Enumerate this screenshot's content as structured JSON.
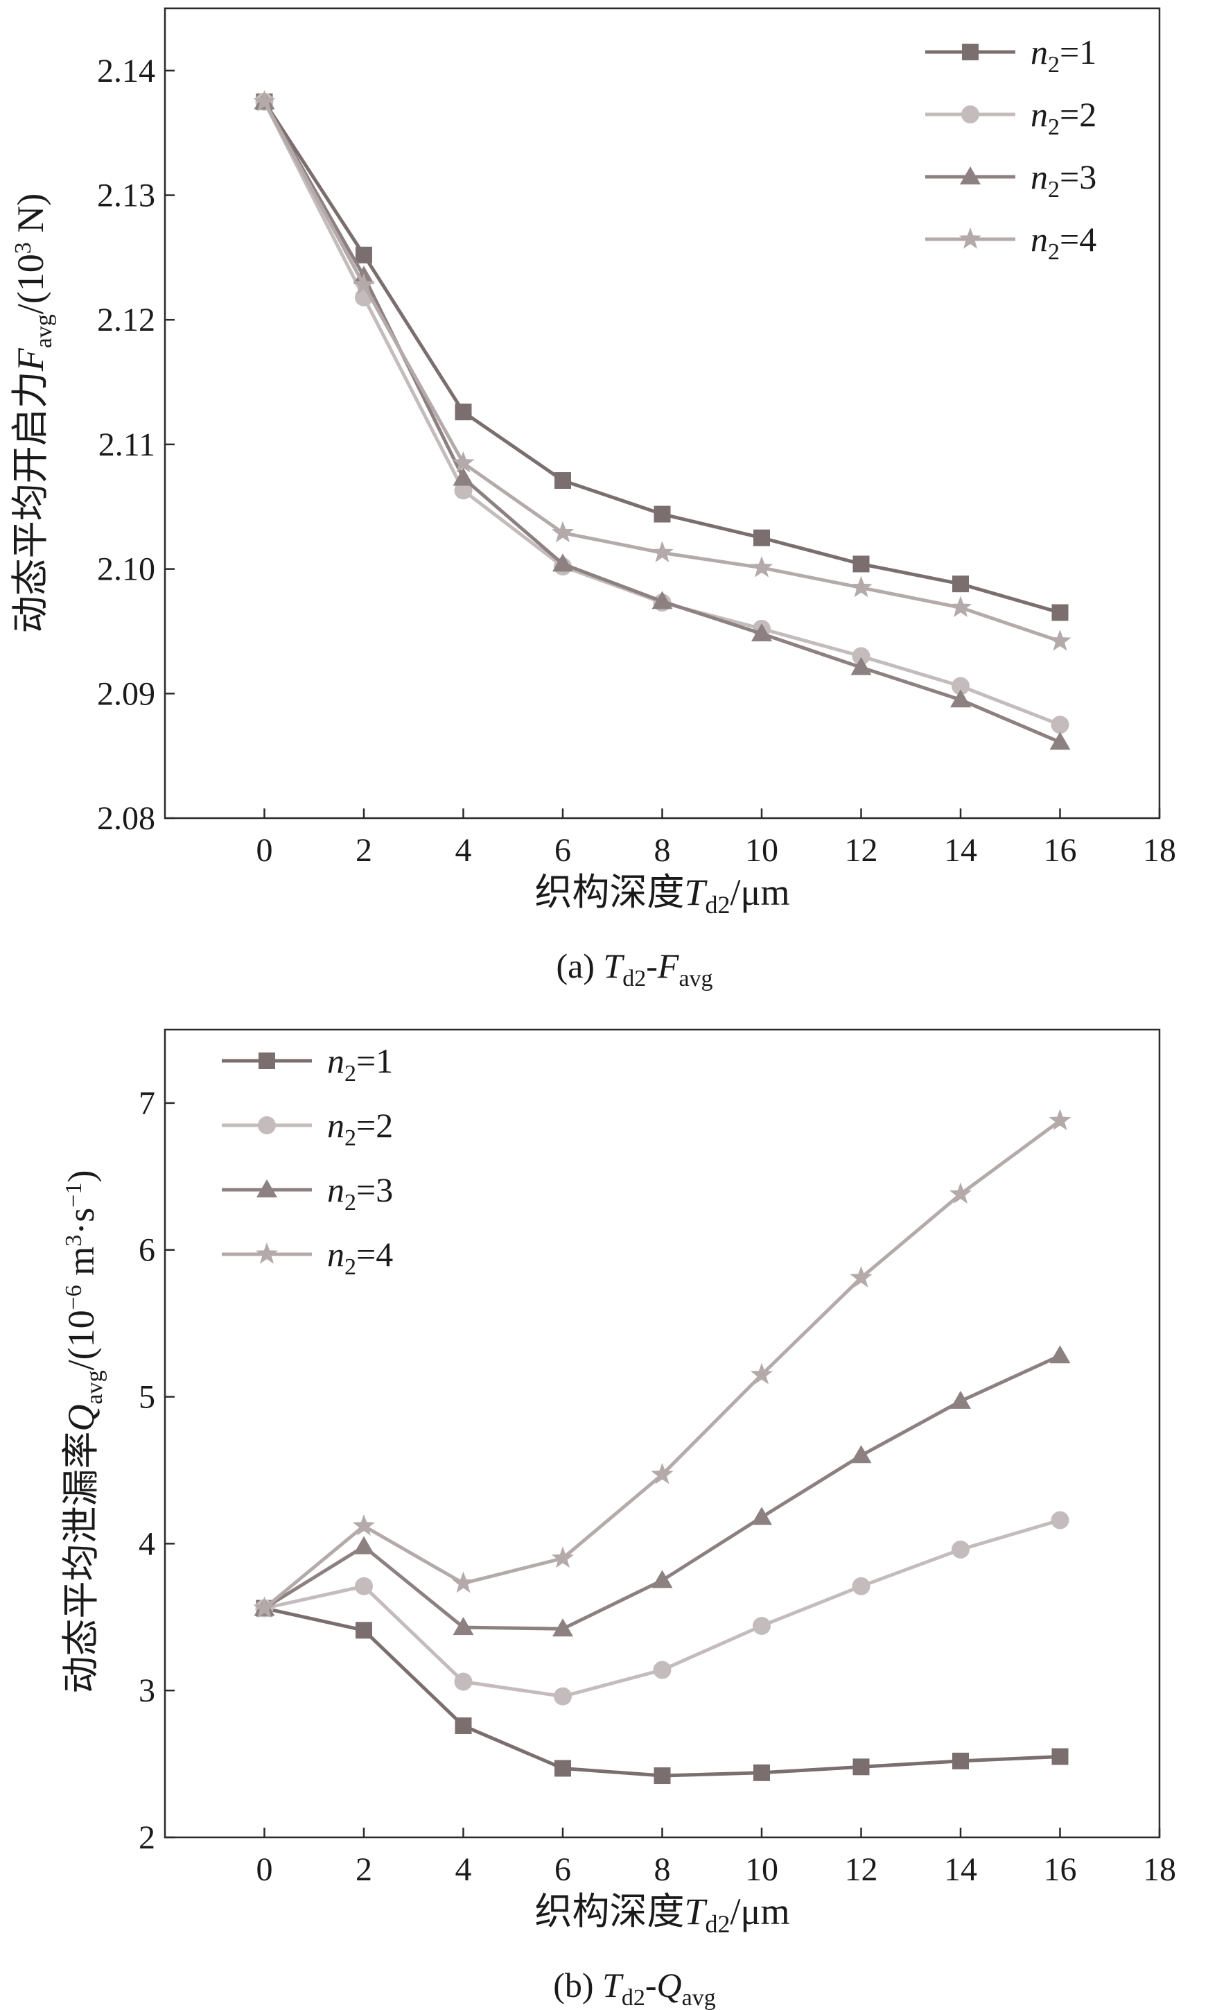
{
  "figure": {
    "colors": {
      "n1": "#7a6e6e",
      "n2": "#c4bcbc",
      "n3": "#8c8080",
      "n4": "#b4aaaa",
      "axis": "#2a2a2a",
      "text": "#1a1a1a"
    }
  },
  "chart_data": [
    {
      "type": "line",
      "id": "a",
      "caption": {
        "prefix": "(a) ",
        "t": "T",
        "t_sub": "d2",
        "dash": "-",
        "v": "F",
        "v_sub": "avg"
      },
      "xlabel": {
        "cn": "织构深度",
        "t": "T",
        "t_sub": "d2",
        "unit": "/μm"
      },
      "ylabel": {
        "cn": "动态平均开启力",
        "v": "F",
        "v_sub": "avg",
        "unit_pre": "/(10",
        "unit_sup": "3",
        "unit_post": " N)"
      },
      "xlim": [
        -2,
        18
      ],
      "ylim": [
        2.08,
        2.145
      ],
      "xticks": [
        0,
        2,
        4,
        6,
        8,
        10,
        12,
        14,
        16,
        18
      ],
      "xtick_labels": [
        "0",
        "2",
        "4",
        "6",
        "8",
        "10",
        "12",
        "14",
        "16",
        "18"
      ],
      "yticks": [
        2.08,
        2.09,
        2.1,
        2.11,
        2.12,
        2.13,
        2.14
      ],
      "ytick_labels": [
        "2.08",
        "2.09",
        "2.10",
        "2.11",
        "2.12",
        "2.13",
        "2.14"
      ],
      "legend_position": "top-right",
      "x": [
        0,
        2,
        4,
        6,
        8,
        10,
        12,
        14,
        16
      ],
      "series": [
        {
          "name_pre": "n",
          "name_sub": "2",
          "name_post": "=1",
          "marker": "square",
          "color_key": "n1",
          "values": [
            2.1375,
            2.1252,
            2.1126,
            2.1071,
            2.1044,
            2.1025,
            2.1004,
            2.0988,
            2.0965
          ]
        },
        {
          "name_pre": "n",
          "name_sub": "2",
          "name_post": "=2",
          "marker": "circle",
          "color_key": "n2",
          "values": [
            2.1375,
            2.1218,
            2.1063,
            2.1002,
            2.0973,
            2.0952,
            2.093,
            2.0906,
            2.0875
          ]
        },
        {
          "name_pre": "n",
          "name_sub": "2",
          "name_post": "=3",
          "marker": "triangle",
          "color_key": "n3",
          "values": [
            2.1375,
            2.1235,
            2.1073,
            2.1004,
            2.0974,
            2.0948,
            2.0921,
            2.0895,
            2.0861
          ]
        },
        {
          "name_pre": "n",
          "name_sub": "2",
          "name_post": "=4",
          "marker": "star",
          "color_key": "n4",
          "values": [
            2.1375,
            2.1228,
            2.1085,
            2.1029,
            2.1013,
            2.1001,
            2.0985,
            2.0969,
            2.0942
          ]
        }
      ]
    },
    {
      "type": "line",
      "id": "b",
      "caption": {
        "prefix": "(b) ",
        "t": "T",
        "t_sub": "d2",
        "dash": "-",
        "v": "Q",
        "v_sub": "avg"
      },
      "xlabel": {
        "cn": "织构深度",
        "t": "T",
        "t_sub": "d2",
        "unit": "/μm"
      },
      "ylabel": {
        "cn": "动态平均泄漏率",
        "v": "Q",
        "v_sub": "avg",
        "unit_pre": "/(10",
        "unit_sup": "−6",
        "unit_mid": " m",
        "unit_sup2": "3",
        "unit_mid2": "·s",
        "unit_sup3": "−1",
        "unit_post": ")"
      },
      "xlim": [
        -2,
        18
      ],
      "ylim": [
        2,
        7.5
      ],
      "xticks": [
        0,
        2,
        4,
        6,
        8,
        10,
        12,
        14,
        16,
        18
      ],
      "xtick_labels": [
        "0",
        "2",
        "4",
        "6",
        "8",
        "10",
        "12",
        "14",
        "16",
        "18"
      ],
      "yticks": [
        2,
        3,
        4,
        5,
        6,
        7
      ],
      "ytick_labels": [
        "2",
        "3",
        "4",
        "5",
        "6",
        "7"
      ],
      "legend_position": "top-left",
      "x": [
        0,
        2,
        4,
        6,
        8,
        10,
        12,
        14,
        16
      ],
      "series": [
        {
          "name_pre": "n",
          "name_sub": "2",
          "name_post": "=1",
          "marker": "square",
          "color_key": "n1",
          "values": [
            3.56,
            3.41,
            2.76,
            2.47,
            2.42,
            2.44,
            2.48,
            2.52,
            2.55
          ]
        },
        {
          "name_pre": "n",
          "name_sub": "2",
          "name_post": "=2",
          "marker": "circle",
          "color_key": "n2",
          "values": [
            3.56,
            3.71,
            3.06,
            2.96,
            3.14,
            3.44,
            3.71,
            3.96,
            4.16
          ]
        },
        {
          "name_pre": "n",
          "name_sub": "2",
          "name_post": "=3",
          "marker": "triangle",
          "color_key": "n3",
          "values": [
            3.56,
            3.98,
            3.43,
            3.42,
            3.75,
            4.18,
            4.6,
            4.97,
            5.28
          ]
        },
        {
          "name_pre": "n",
          "name_sub": "2",
          "name_post": "=4",
          "marker": "star",
          "color_key": "n4",
          "values": [
            3.56,
            4.12,
            3.73,
            3.9,
            4.47,
            5.15,
            5.81,
            6.38,
            6.88
          ]
        }
      ]
    }
  ]
}
